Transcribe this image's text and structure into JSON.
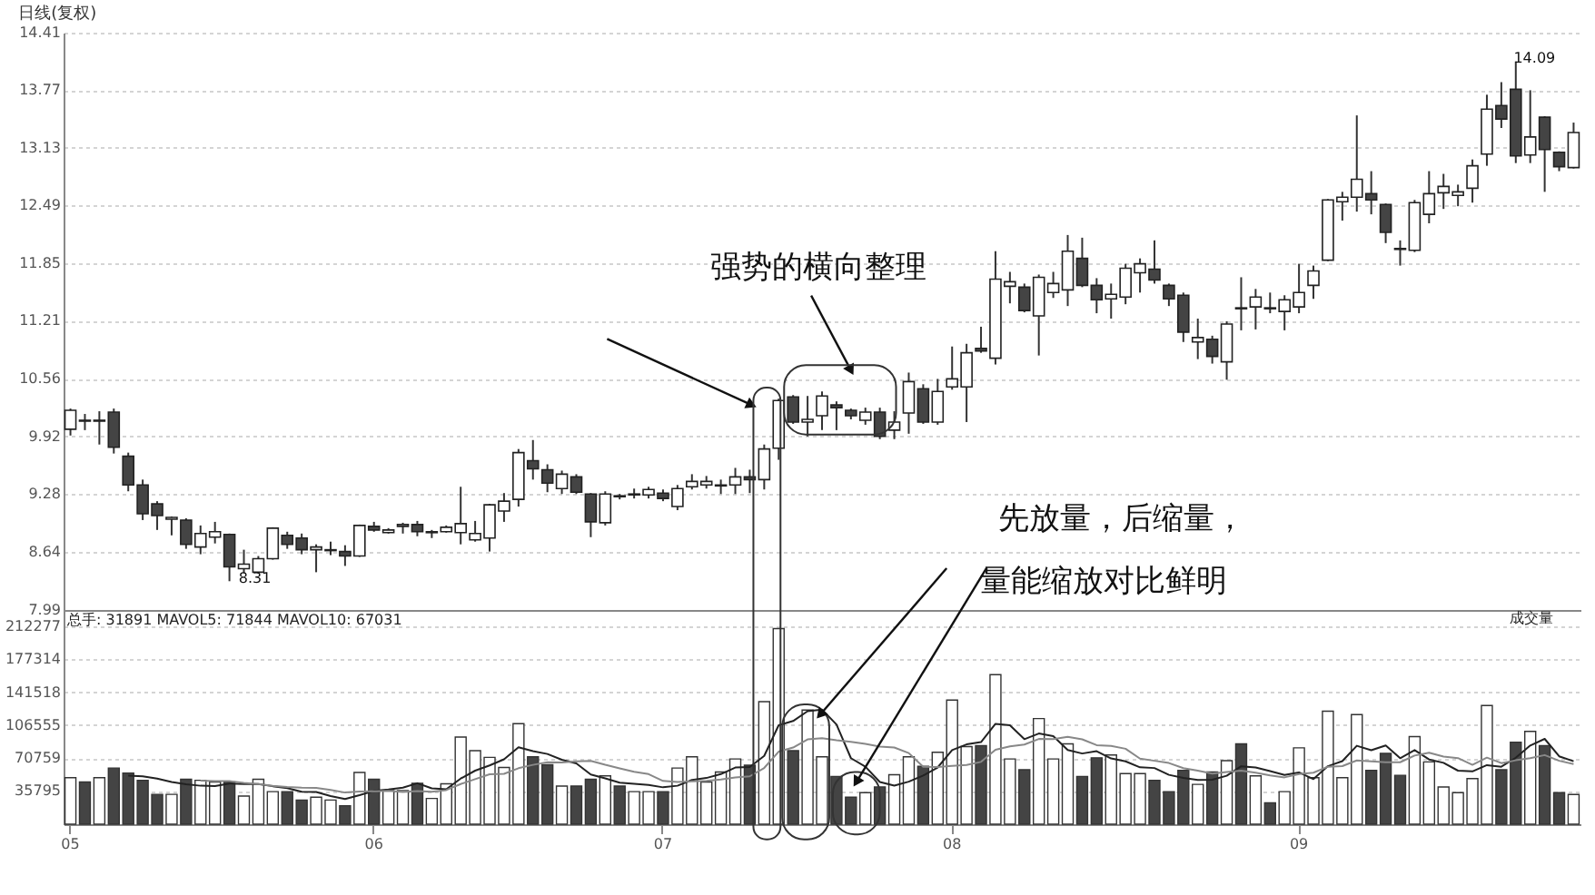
{
  "chart_data": [
    {
      "type": "candlestick",
      "title": "日线(复权)",
      "categories": [
        "05",
        null,
        null,
        null,
        null,
        null,
        null,
        null,
        null,
        null,
        null,
        null,
        null,
        null,
        null,
        null,
        null,
        null,
        null,
        null,
        null,
        "06",
        null,
        null,
        null,
        null,
        null,
        null,
        null,
        null,
        null,
        null,
        null,
        null,
        null,
        null,
        null,
        null,
        null,
        null,
        null,
        "07",
        null,
        null,
        null,
        null,
        null,
        null,
        null,
        null,
        null,
        null,
        null,
        null,
        null,
        null,
        null,
        null,
        null,
        null,
        null,
        "08",
        null,
        null,
        null,
        null,
        null,
        null,
        null,
        null,
        null,
        null,
        null,
        null,
        null,
        null,
        null,
        null,
        null,
        null,
        null,
        null,
        null,
        null,
        null,
        "09",
        null,
        null,
        null,
        null,
        null,
        null,
        null,
        null,
        null,
        null,
        null,
        null,
        null,
        null,
        null,
        null,
        null,
        null,
        null
      ],
      "ohlc": [
        [
          10.0,
          10.23,
          9.93,
          10.21
        ],
        [
          10.1,
          10.17,
          9.99,
          10.09
        ],
        [
          10.09,
          10.2,
          9.83,
          10.1
        ],
        [
          10.19,
          10.23,
          9.73,
          9.8
        ],
        [
          9.7,
          9.74,
          9.31,
          9.38
        ],
        [
          9.38,
          9.44,
          8.99,
          9.06
        ],
        [
          9.17,
          9.2,
          8.88,
          9.04
        ],
        [
          9.0,
          9.03,
          8.82,
          9.02
        ],
        [
          8.99,
          9.01,
          8.67,
          8.72
        ],
        [
          8.69,
          8.93,
          8.61,
          8.84
        ],
        [
          8.8,
          8.97,
          8.73,
          8.86
        ],
        [
          8.83,
          8.84,
          8.31,
          8.47
        ],
        [
          8.45,
          8.66,
          8.4,
          8.5
        ],
        [
          8.41,
          8.59,
          8.4,
          8.56
        ],
        [
          8.56,
          8.91,
          8.55,
          8.9
        ],
        [
          8.82,
          8.86,
          8.67,
          8.72
        ],
        [
          8.79,
          8.84,
          8.61,
          8.66
        ],
        [
          8.66,
          8.72,
          8.41,
          8.69
        ],
        [
          8.65,
          8.75,
          8.6,
          8.66
        ],
        [
          8.64,
          8.71,
          8.48,
          8.59
        ],
        [
          8.59,
          8.94,
          8.58,
          8.93
        ],
        [
          8.92,
          8.97,
          8.86,
          8.88
        ],
        [
          8.85,
          8.9,
          8.84,
          8.88
        ],
        [
          8.92,
          8.96,
          8.84,
          8.94
        ],
        [
          8.94,
          8.98,
          8.81,
          8.86
        ],
        [
          8.85,
          8.88,
          8.79,
          8.86
        ],
        [
          8.86,
          8.93,
          8.85,
          8.91
        ],
        [
          8.85,
          9.36,
          8.72,
          8.95
        ],
        [
          8.77,
          8.98,
          8.75,
          8.84
        ],
        [
          8.79,
          9.17,
          8.64,
          9.16
        ],
        [
          9.09,
          9.29,
          8.97,
          9.2
        ],
        [
          9.22,
          9.78,
          9.14,
          9.74
        ],
        [
          9.65,
          9.88,
          9.44,
          9.56
        ],
        [
          9.55,
          9.61,
          9.3,
          9.4
        ],
        [
          9.34,
          9.54,
          9.28,
          9.5
        ],
        [
          9.47,
          9.5,
          9.28,
          9.3
        ],
        [
          9.28,
          9.29,
          8.8,
          8.97
        ],
        [
          8.96,
          9.31,
          8.93,
          9.28
        ],
        [
          9.26,
          9.28,
          9.22,
          9.25
        ],
        [
          9.27,
          9.34,
          9.23,
          9.28
        ],
        [
          9.27,
          9.36,
          9.23,
          9.33
        ],
        [
          9.29,
          9.33,
          9.2,
          9.23
        ],
        [
          9.14,
          9.38,
          9.1,
          9.34
        ],
        [
          9.36,
          9.5,
          9.33,
          9.42
        ],
        [
          9.38,
          9.48,
          9.34,
          9.42
        ],
        [
          9.37,
          9.44,
          9.28,
          9.38
        ],
        [
          9.38,
          9.57,
          9.28,
          9.47
        ],
        [
          9.47,
          9.55,
          9.29,
          9.44
        ],
        [
          9.44,
          9.83,
          9.33,
          9.78
        ],
        [
          9.79,
          10.34,
          9.66,
          10.32
        ],
        [
          10.36,
          10.38,
          10.06,
          10.08
        ],
        [
          10.08,
          10.37,
          9.92,
          10.11
        ],
        [
          10.15,
          10.42,
          9.99,
          10.37
        ],
        [
          10.27,
          10.31,
          9.99,
          10.24
        ],
        [
          10.21,
          10.23,
          10.11,
          10.15
        ],
        [
          10.1,
          10.24,
          10.05,
          10.19
        ],
        [
          10.19,
          10.24,
          9.89,
          9.92
        ],
        [
          9.99,
          10.2,
          9.89,
          10.08
        ],
        [
          10.18,
          10.63,
          9.95,
          10.53
        ],
        [
          10.45,
          10.5,
          10.06,
          10.08
        ],
        [
          10.08,
          10.56,
          10.05,
          10.42
        ],
        [
          10.47,
          10.92,
          10.44,
          10.56
        ],
        [
          10.47,
          10.95,
          10.08,
          10.85
        ],
        [
          10.9,
          11.14,
          10.85,
          10.87
        ],
        [
          10.79,
          11.98,
          10.72,
          11.67
        ],
        [
          11.59,
          11.75,
          11.4,
          11.64
        ],
        [
          11.58,
          11.62,
          11.3,
          11.32
        ],
        [
          11.26,
          11.72,
          10.82,
          11.69
        ],
        [
          11.52,
          11.75,
          11.46,
          11.62
        ],
        [
          11.55,
          12.16,
          11.37,
          11.98
        ],
        [
          11.9,
          12.13,
          11.58,
          11.6
        ],
        [
          11.6,
          11.68,
          11.29,
          11.44
        ],
        [
          11.45,
          11.62,
          11.23,
          11.5
        ],
        [
          11.47,
          11.84,
          11.39,
          11.79
        ],
        [
          11.74,
          11.9,
          11.52,
          11.84
        ],
        [
          11.78,
          12.1,
          11.62,
          11.66
        ],
        [
          11.6,
          11.62,
          11.37,
          11.45
        ],
        [
          11.49,
          11.52,
          10.97,
          11.08
        ],
        [
          10.97,
          11.23,
          10.78,
          11.02
        ],
        [
          11.0,
          11.04,
          10.73,
          10.81
        ],
        [
          10.75,
          11.2,
          10.55,
          11.17
        ],
        [
          11.35,
          11.69,
          11.1,
          11.34
        ],
        [
          11.36,
          11.56,
          11.11,
          11.47
        ],
        [
          11.35,
          11.52,
          11.29,
          11.34
        ],
        [
          11.31,
          11.49,
          11.1,
          11.44
        ],
        [
          11.36,
          11.84,
          11.29,
          11.52
        ],
        [
          11.6,
          11.82,
          11.45,
          11.76
        ],
        [
          11.88,
          12.56,
          11.87,
          12.55
        ],
        [
          12.53,
          12.64,
          12.32,
          12.58
        ],
        [
          12.58,
          13.49,
          12.42,
          12.78
        ],
        [
          12.62,
          12.87,
          12.39,
          12.55
        ],
        [
          12.5,
          12.51,
          12.07,
          12.19
        ],
        [
          12.01,
          12.1,
          11.82,
          12.0
        ],
        [
          11.99,
          12.55,
          11.97,
          12.52
        ],
        [
          12.39,
          12.87,
          12.29,
          12.62
        ],
        [
          12.63,
          12.84,
          12.45,
          12.7
        ],
        [
          12.6,
          12.72,
          12.48,
          12.64
        ],
        [
          12.68,
          13.0,
          12.52,
          12.93
        ],
        [
          13.06,
          13.72,
          12.93,
          13.56
        ],
        [
          13.6,
          13.86,
          13.35,
          13.45
        ],
        [
          13.78,
          14.09,
          12.96,
          13.04
        ],
        [
          13.05,
          13.77,
          12.96,
          13.25
        ],
        [
          13.47,
          13.48,
          12.64,
          13.11
        ],
        [
          13.08,
          13.09,
          12.87,
          12.92
        ],
        [
          12.91,
          13.41,
          12.9,
          13.3
        ]
      ],
      "ylim": [
        7.99,
        14.41
      ],
      "yticks": [
        7.99,
        8.64,
        9.28,
        9.92,
        10.56,
        11.21,
        11.85,
        12.49,
        13.13,
        13.77,
        14.41
      ],
      "grid": "y",
      "tick_labels": "y",
      "annotations": [
        "14.09",
        "8.31",
        "强势的横向整理",
        "先放量，后缩量，",
        "量能缩放对比鲜明"
      ]
    },
    {
      "type": "bar",
      "categories": [
        "05",
        null,
        null,
        null,
        null,
        null,
        null,
        null,
        null,
        null,
        null,
        null,
        null,
        null,
        null,
        null,
        null,
        null,
        null,
        null,
        null,
        "06",
        null,
        null,
        null,
        null,
        null,
        null,
        null,
        null,
        null,
        null,
        null,
        null,
        null,
        null,
        null,
        null,
        null,
        null,
        null,
        "07",
        null,
        null,
        null,
        null,
        null,
        null,
        null,
        null,
        null,
        null,
        null,
        null,
        null,
        null,
        null,
        null,
        null,
        null,
        null,
        "08",
        null,
        null,
        null,
        null,
        null,
        null,
        null,
        null,
        null,
        null,
        null,
        null,
        null,
        null,
        null,
        null,
        null,
        null,
        null,
        null,
        null,
        null,
        null,
        "09",
        null,
        null,
        null,
        null,
        null,
        null,
        null,
        null,
        null,
        null,
        null,
        null,
        null,
        null,
        null,
        null,
        null,
        null,
        null
      ],
      "series": [
        {
          "type": "bar",
          "colors": [
            "#ffffff",
            "#444444",
            "#ffffff",
            "#444444",
            "#444444",
            "#444444",
            "#444444",
            "#ffffff",
            "#444444",
            "#ffffff",
            "#ffffff",
            "#444444",
            "#ffffff",
            "#ffffff",
            "#ffffff",
            "#444444",
            "#444444",
            "#ffffff",
            "#ffffff",
            "#444444",
            "#ffffff",
            "#444444",
            "#ffffff",
            "#ffffff",
            "#444444",
            "#ffffff",
            "#ffffff",
            "#ffffff",
            "#ffffff",
            "#ffffff",
            "#ffffff",
            "#ffffff",
            "#444444",
            "#444444",
            "#ffffff",
            "#444444",
            "#444444",
            "#ffffff",
            "#444444",
            "#ffffff",
            "#ffffff",
            "#444444",
            "#ffffff",
            "#ffffff",
            "#ffffff",
            "#ffffff",
            "#ffffff",
            "#444444",
            "#ffffff",
            "#ffffff",
            "#444444",
            "#ffffff",
            "#ffffff",
            "#444444",
            "#444444",
            "#ffffff",
            "#444444",
            "#ffffff",
            "#ffffff",
            "#444444",
            "#ffffff",
            "#ffffff",
            "#ffffff",
            "#444444",
            "#ffffff",
            "#ffffff",
            "#444444",
            "#ffffff",
            "#ffffff",
            "#ffffff",
            "#444444",
            "#444444",
            "#ffffff",
            "#ffffff",
            "#ffffff",
            "#444444",
            "#444444",
            "#444444",
            "#ffffff",
            "#444444",
            "#ffffff",
            "#444444",
            "#ffffff",
            "#444444",
            "#ffffff",
            "#ffffff",
            "#ffffff",
            "#ffffff",
            "#ffffff",
            "#ffffff",
            "#444444",
            "#444444",
            "#444444",
            "#ffffff",
            "#ffffff",
            "#ffffff",
            "#ffffff",
            "#ffffff",
            "#ffffff",
            "#444444",
            "#444444",
            "#ffffff",
            "#444444",
            "#444444",
            "#ffffff"
          ],
          "values": [
            50000,
            45300,
            50000,
            60300,
            54900,
            47100,
            32000,
            32000,
            48300,
            47100,
            45300,
            45300,
            30200,
            48300,
            35000,
            35000,
            25900,
            29000,
            25900,
            19900,
            55500,
            48300,
            36200,
            36200,
            44000,
            27700,
            43400,
            93500,
            79000,
            71800,
            60900,
            108000,
            72400,
            63900,
            41000,
            41000,
            48300,
            51900,
            41000,
            35000,
            35000,
            35000,
            60300,
            72400,
            45300,
            56100,
            70000,
            63400,
            131500,
            210000,
            79000,
            122600,
            72400,
            51300,
            29000,
            33900,
            39900,
            53100,
            72400,
            62100,
            77200,
            133300,
            83300,
            84400,
            160500,
            70000,
            58500,
            113400,
            70000,
            86200,
            51300,
            71300,
            74300,
            54300,
            54300,
            47100,
            35000,
            57900,
            42800,
            56100,
            68200,
            86200,
            51900,
            23000,
            35000,
            82000,
            50000,
            121300,
            50000,
            117700,
            57900,
            76000,
            52500,
            94100,
            66900,
            39900,
            33900,
            48900,
            127400,
            58500,
            88100,
            99600,
            84400,
            33800,
            31900
          ]
        },
        {
          "type": "line",
          "color": "#222222",
          "values": [
            null,
            null,
            null,
            null,
            52100,
            51500,
            48900,
            45300,
            42900,
            41300,
            40900,
            43600,
            43200,
            43200,
            40800,
            38800,
            34900,
            34600,
            30200,
            27100,
            31200,
            35700,
            37200,
            39200,
            44000,
            38500,
            37500,
            49000,
            57500,
            63100,
            69700,
            82600,
            78400,
            75400,
            69200,
            65300,
            53300,
            49200,
            44600,
            43400,
            42200,
            39600,
            41300,
            47500,
            49600,
            53800,
            60800,
            61400,
            73300,
            106200,
            110800,
            121300,
            123100,
            107100,
            70900,
            61800,
            45300,
            41400,
            45700,
            52300,
            60900,
            79600,
            85700,
            88100,
            107700,
            106300,
            91300,
            97400,
            94500,
            79600,
            75900,
            78400,
            70600,
            67500,
            61100,
            60300,
            53000,
            49700,
            47400,
            47800,
            52000,
            62200,
            61000,
            57100,
            52900,
            55600,
            48400,
            62300,
            67700,
            84200,
            79400,
            84600,
            70800,
            79600,
            69500,
            65900,
            57500,
            56700,
            63400,
            61700,
            71400,
            84500,
            91600,
            72900,
            67600
          ]
        },
        {
          "type": "line",
          "color": "#888888",
          "values": [
            null,
            null,
            null,
            null,
            null,
            null,
            null,
            null,
            null,
            46700,
            46200,
            46200,
            44300,
            43100,
            41100,
            39900,
            39200,
            38900,
            36700,
            34000,
            35000,
            35300,
            35900,
            34700,
            35600,
            34900,
            36600,
            43100,
            48400,
            53600,
            54100,
            60100,
            63700,
            66500,
            66200,
            67500,
            68000,
            63800,
            60000,
            56300,
            53800,
            46500,
            45200,
            46100,
            46500,
            48000,
            50200,
            51400,
            60400,
            77900,
            82300,
            91100,
            92300,
            90200,
            88500,
            86300,
            83300,
            82300,
            76400,
            61600,
            61400,
            62500,
            63600,
            66900,
            80000,
            83600,
            85500,
            91500,
            91300,
            93700,
            91100,
            84900,
            84000,
            81000,
            70400,
            68100,
            65700,
            60200,
            57500,
            54400,
            56100,
            57600,
            55400,
            52300,
            50300,
            53800,
            55300,
            61700,
            62400,
            68500,
            67500,
            66500,
            66500,
            73700,
            76800,
            72600,
            71000,
            63800,
            71500,
            65600,
            68600,
            71000,
            74200,
            68100,
            64600
          ]
        }
      ],
      "ylim": [
        0,
        230000
      ],
      "yticks": [
        35795,
        70759,
        106555,
        141518,
        177314,
        212277
      ],
      "grid": "y",
      "annotations": [
        "总手: 31891 MAVOL5: 71844 MAVOL10: 67031",
        "成交量"
      ]
    }
  ]
}
